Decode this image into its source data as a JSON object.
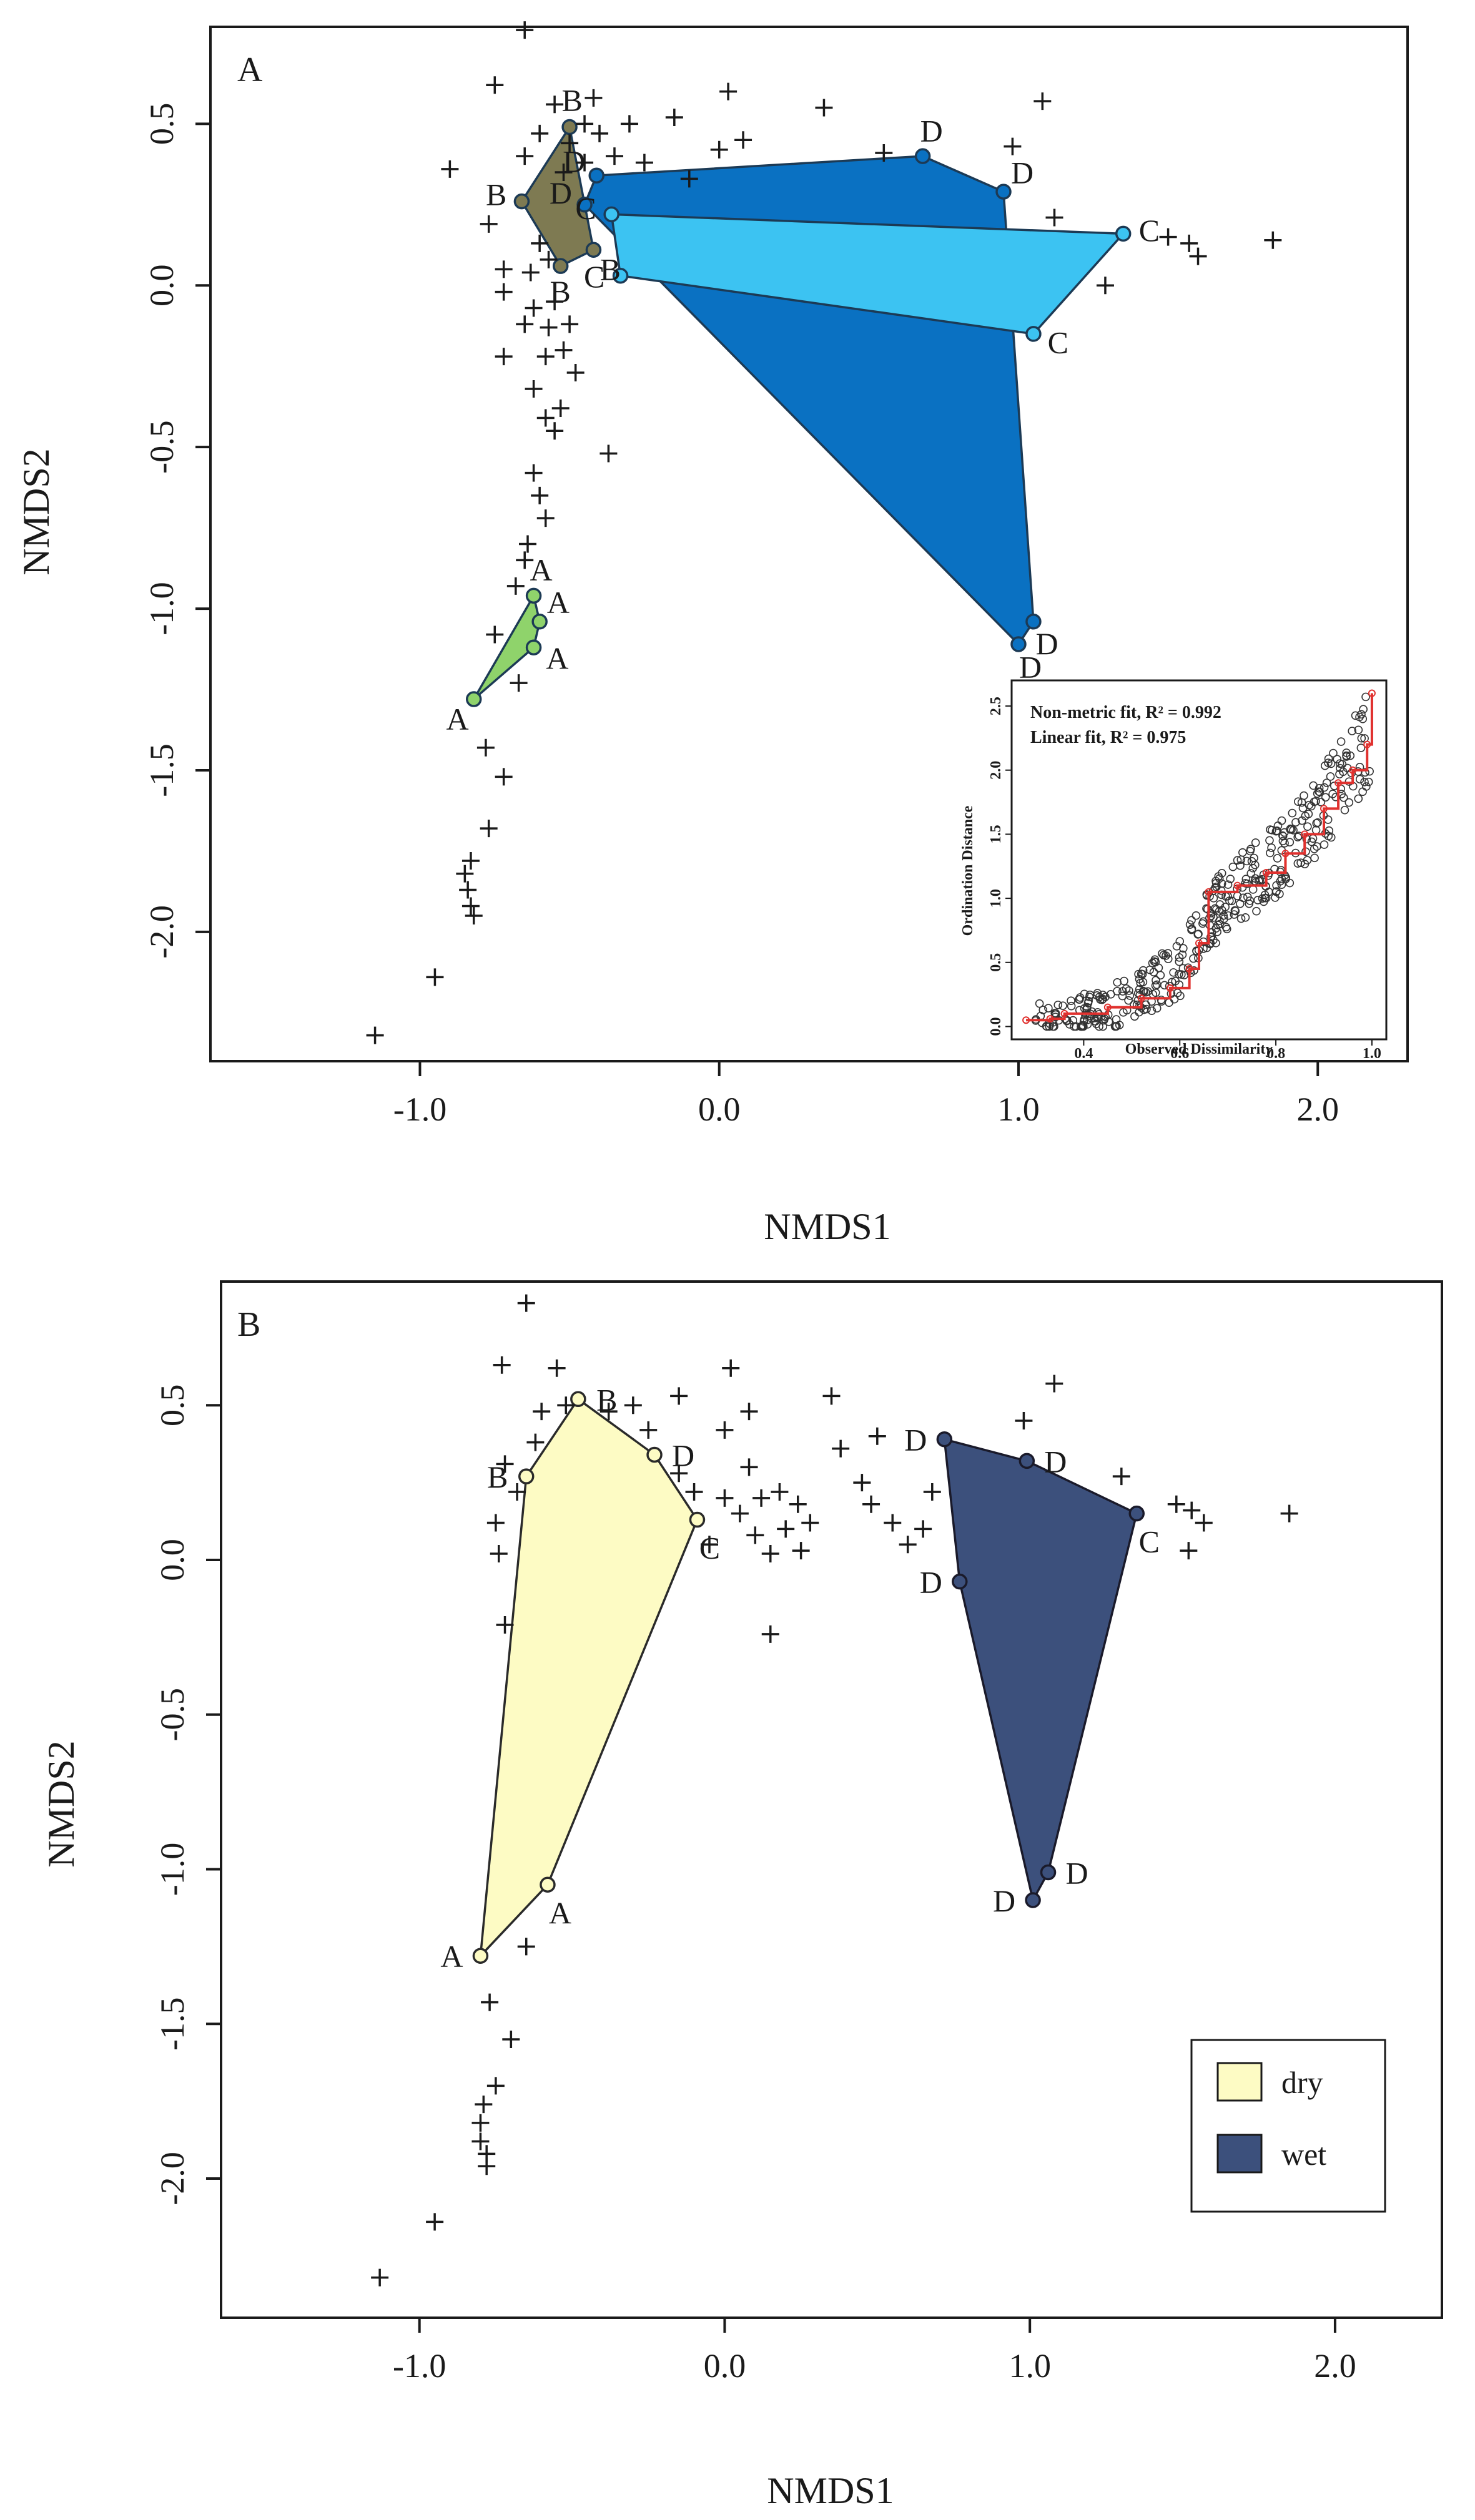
{
  "chart_data": [
    {
      "type": "scatter",
      "panel_label": "A",
      "xlabel": "NMDS1",
      "ylabel": "NMDS2",
      "xlim": [
        -1.7,
        2.3
      ],
      "ylim": [
        -2.4,
        0.8
      ],
      "xticks": [
        -1.0,
        0.0,
        1.0,
        2.0
      ],
      "xtick_labels": [
        "-1.0",
        "0.0",
        "1.0",
        "2.0"
      ],
      "yticks": [
        0.5,
        0.0,
        -0.5,
        -1.0,
        -1.5,
        -2.0
      ],
      "ytick_labels": [
        "0.5",
        "0.0",
        "-0.5",
        "-1.0",
        "-1.5",
        "-2.0"
      ],
      "grid": false,
      "marker": "+",
      "points": [
        [
          -0.65,
          0.79
        ],
        [
          -0.75,
          0.62
        ],
        [
          -0.55,
          0.56
        ],
        [
          -0.42,
          0.58
        ],
        [
          -0.6,
          0.47
        ],
        [
          -0.45,
          0.5
        ],
        [
          -0.5,
          0.44
        ],
        [
          -0.4,
          0.47
        ],
        [
          -0.3,
          0.5
        ],
        [
          -0.15,
          0.52
        ],
        [
          -0.9,
          0.36
        ],
        [
          -0.65,
          0.4
        ],
        [
          -0.52,
          0.35
        ],
        [
          -0.45,
          0.38
        ],
        [
          -0.35,
          0.4
        ],
        [
          -0.25,
          0.38
        ],
        [
          -0.1,
          0.33
        ],
        [
          0.0,
          0.42
        ],
        [
          0.08,
          0.45
        ],
        [
          0.03,
          0.6
        ],
        [
          0.35,
          0.55
        ],
        [
          0.55,
          0.41
        ],
        [
          0.98,
          0.43
        ],
        [
          1.08,
          0.57
        ],
        [
          1.12,
          0.21
        ],
        [
          -0.77,
          0.19
        ],
        [
          -0.6,
          0.13
        ],
        [
          -0.72,
          0.05
        ],
        [
          -0.63,
          0.04
        ],
        [
          -0.57,
          0.08
        ],
        [
          -0.72,
          -0.02
        ],
        [
          -0.62,
          -0.07
        ],
        [
          -0.55,
          -0.05
        ],
        [
          -0.65,
          -0.12
        ],
        [
          -0.57,
          -0.13
        ],
        [
          -0.5,
          -0.12
        ],
        [
          -0.58,
          -0.22
        ],
        [
          -0.52,
          -0.2
        ],
        [
          -0.48,
          -0.27
        ],
        [
          -0.72,
          -0.22
        ],
        [
          -0.62,
          -0.32
        ],
        [
          -0.58,
          -0.41
        ],
        [
          -0.53,
          -0.38
        ],
        [
          -0.55,
          -0.45
        ],
        [
          -0.62,
          -0.58
        ],
        [
          -0.6,
          -0.65
        ],
        [
          -0.58,
          -0.72
        ],
        [
          -0.64,
          -0.8
        ],
        [
          -0.65,
          -0.85
        ],
        [
          -0.68,
          -0.93
        ],
        [
          -0.37,
          -0.52
        ],
        [
          -0.75,
          -1.08
        ],
        [
          -0.67,
          -1.23
        ],
        [
          -0.78,
          -1.43
        ],
        [
          -0.72,
          -1.52
        ],
        [
          -0.77,
          -1.68
        ],
        [
          -0.83,
          -1.78
        ],
        [
          -0.85,
          -1.82
        ],
        [
          -0.84,
          -1.87
        ],
        [
          -0.83,
          -1.92
        ],
        [
          -0.82,
          -1.95
        ],
        [
          -0.95,
          -2.14
        ],
        [
          -1.15,
          -2.32
        ],
        [
          1.29,
          0.0
        ],
        [
          1.5,
          0.15
        ],
        [
          1.57,
          0.13
        ],
        [
          1.6,
          0.09
        ],
        [
          1.85,
          0.14
        ]
      ],
      "groups": [
        {
          "name": "A",
          "color": "#8fd36b",
          "vertex_label": "A",
          "hull": [
            [
              -0.82,
              -1.28
            ],
            [
              -0.62,
              -0.96
            ],
            [
              -0.6,
              -1.04
            ],
            [
              -0.62,
              -1.12
            ]
          ]
        },
        {
          "name": "B",
          "color": "#7e7a52",
          "vertex_label": "B",
          "hull": [
            [
              -0.66,
              0.26
            ],
            [
              -0.5,
              0.49
            ],
            [
              -0.42,
              0.11
            ],
            [
              -0.53,
              0.06
            ]
          ]
        },
        {
          "name": "D",
          "color": "#0a71c2",
          "vertex_label": "D",
          "hull": [
            [
              -0.41,
              0.34
            ],
            [
              0.68,
              0.4
            ],
            [
              0.95,
              0.29
            ],
            [
              1.05,
              -1.04
            ],
            [
              1.0,
              -1.11
            ],
            [
              -0.45,
              0.25
            ]
          ]
        },
        {
          "name": "C",
          "color": "#3cc3f2",
          "vertex_label": "C",
          "hull": [
            [
              -0.36,
              0.22
            ],
            [
              1.35,
              0.16
            ],
            [
              1.05,
              -0.15
            ],
            [
              -0.33,
              0.03
            ]
          ]
        }
      ],
      "inset": {
        "type": "scatter",
        "title": "",
        "annotations": [
          "Non-metric fit, R² = 0.992",
          "Linear fit, R² = 0.975"
        ],
        "xlabel": "Observed Dissimilarity",
        "ylabel": "Ordination Distance",
        "xlim": [
          0.25,
          1.03
        ],
        "ylim": [
          -0.1,
          2.7
        ],
        "xticks": [
          0.4,
          0.6,
          0.8,
          1.0
        ],
        "xtick_labels": [
          "0.4",
          "0.6",
          "0.8",
          "1.0"
        ],
        "yticks": [
          0.0,
          0.5,
          1.0,
          1.5,
          2.0,
          2.5
        ],
        "ytick_labels": [
          "0.0",
          "0.5",
          "1.0",
          "1.5",
          "2.0",
          "2.5"
        ],
        "fit_line_color": "#e0312e",
        "point_color": "#333333",
        "trend_points": [
          [
            0.28,
            0.05
          ],
          [
            0.4,
            0.1
          ],
          [
            0.5,
            0.2
          ],
          [
            0.6,
            0.45
          ],
          [
            0.65,
            0.8
          ],
          [
            0.7,
            1.0
          ],
          [
            0.8,
            1.3
          ],
          [
            0.9,
            1.7
          ],
          [
            0.95,
            2.0
          ],
          [
            1.0,
            2.3
          ]
        ],
        "fit_step": [
          [
            0.28,
            0.05
          ],
          [
            0.33,
            0.06
          ],
          [
            0.36,
            0.1
          ],
          [
            0.45,
            0.15
          ],
          [
            0.52,
            0.22
          ],
          [
            0.58,
            0.3
          ],
          [
            0.62,
            0.45
          ],
          [
            0.64,
            0.65
          ],
          [
            0.66,
            1.05
          ],
          [
            0.72,
            1.1
          ],
          [
            0.78,
            1.2
          ],
          [
            0.82,
            1.35
          ],
          [
            0.86,
            1.5
          ],
          [
            0.9,
            1.7
          ],
          [
            0.93,
            1.9
          ],
          [
            0.96,
            2.0
          ],
          [
            0.99,
            2.2
          ],
          [
            1.0,
            2.6
          ]
        ]
      }
    },
    {
      "type": "scatter",
      "panel_label": "B",
      "xlabel": "NMDS1",
      "ylabel": "NMDS2",
      "xlim": [
        -1.65,
        2.35
      ],
      "ylim": [
        -2.45,
        0.9
      ],
      "xticks": [
        -1.0,
        0.0,
        1.0,
        2.0
      ],
      "xtick_labels": [
        "-1.0",
        "0.0",
        "1.0",
        "2.0"
      ],
      "yticks": [
        0.5,
        0.0,
        -0.5,
        -1.0,
        -1.5,
        -2.0
      ],
      "ytick_labels": [
        "0.5",
        "0.0",
        "-0.5",
        "-1.0",
        "-1.5",
        "-2.0"
      ],
      "grid": false,
      "marker": "+",
      "legend_position": "bottom-right",
      "points": [
        [
          -0.65,
          0.83
        ],
        [
          -0.73,
          0.63
        ],
        [
          -0.55,
          0.62
        ],
        [
          -0.52,
          0.5
        ],
        [
          -0.6,
          0.48
        ],
        [
          -0.38,
          0.48
        ],
        [
          -0.3,
          0.5
        ],
        [
          -0.25,
          0.42
        ],
        [
          -0.15,
          0.53
        ],
        [
          0.02,
          0.62
        ],
        [
          0.08,
          0.48
        ],
        [
          0.35,
          0.53
        ],
        [
          0.0,
          0.42
        ],
        [
          0.08,
          0.3
        ],
        [
          -0.15,
          0.28
        ],
        [
          -0.1,
          0.22
        ],
        [
          0.0,
          0.2
        ],
        [
          0.05,
          0.15
        ],
        [
          0.12,
          0.2
        ],
        [
          0.18,
          0.22
        ],
        [
          0.24,
          0.18
        ],
        [
          0.28,
          0.12
        ],
        [
          0.25,
          0.03
        ],
        [
          -0.05,
          0.05
        ],
        [
          0.1,
          0.08
        ],
        [
          0.15,
          0.02
        ],
        [
          0.2,
          0.1
        ],
        [
          0.5,
          0.4
        ],
        [
          0.38,
          0.36
        ],
        [
          0.45,
          0.25
        ],
        [
          0.48,
          0.18
        ],
        [
          0.55,
          0.12
        ],
        [
          0.6,
          0.05
        ],
        [
          0.65,
          0.1
        ],
        [
          0.68,
          0.22
        ],
        [
          0.98,
          0.45
        ],
        [
          1.08,
          0.57
        ],
        [
          1.3,
          0.27
        ],
        [
          1.48,
          0.18
        ],
        [
          1.53,
          0.16
        ],
        [
          1.57,
          0.12
        ],
        [
          1.52,
          0.03
        ],
        [
          1.85,
          0.15
        ],
        [
          0.15,
          -0.24
        ],
        [
          -0.72,
          0.31
        ],
        [
          -0.68,
          0.22
        ],
        [
          -0.75,
          0.12
        ],
        [
          -0.74,
          0.02
        ],
        [
          -0.72,
          -0.21
        ],
        [
          -0.62,
          0.38
        ],
        [
          -0.65,
          -1.25
        ],
        [
          -0.77,
          -1.43
        ],
        [
          -0.7,
          -1.55
        ],
        [
          -0.75,
          -1.7
        ],
        [
          -0.79,
          -1.76
        ],
        [
          -0.8,
          -1.82
        ],
        [
          -0.8,
          -1.88
        ],
        [
          -0.78,
          -1.92
        ],
        [
          -0.78,
          -1.96
        ],
        [
          -0.95,
          -2.14
        ],
        [
          -1.13,
          -2.32
        ]
      ],
      "groups": [
        {
          "name": "dry",
          "color": "#fdfbc4",
          "stroke": "#2a2a2a",
          "hull": [
            [
              -0.8,
              -1.28
            ],
            [
              -0.65,
              0.27
            ],
            [
              -0.48,
              0.52
            ],
            [
              -0.23,
              0.34
            ],
            [
              -0.09,
              0.13
            ],
            [
              -0.58,
              -1.05
            ]
          ]
        },
        {
          "name": "wet",
          "color": "#3c507c",
          "stroke": "#1a1a2a",
          "hull": [
            [
              0.72,
              0.39
            ],
            [
              0.99,
              0.32
            ],
            [
              1.35,
              0.15
            ],
            [
              1.06,
              -1.01
            ],
            [
              1.01,
              -1.1
            ],
            [
              0.77,
              -0.07
            ]
          ]
        }
      ],
      "vertex_labels": [
        {
          "text": "A",
          "at": [
            -0.8,
            -1.28
          ],
          "side": "left"
        },
        {
          "text": "B",
          "at": [
            -0.65,
            0.27
          ],
          "side": "left"
        },
        {
          "text": "B",
          "at": [
            -0.48,
            0.52
          ],
          "side": "right"
        },
        {
          "text": "D",
          "at": [
            -0.23,
            0.34
          ],
          "side": "right"
        },
        {
          "text": "C",
          "at": [
            -0.09,
            0.13
          ],
          "side": "below"
        },
        {
          "text": "A",
          "at": [
            -0.58,
            -1.05
          ],
          "side": "below"
        },
        {
          "text": "D",
          "at": [
            0.72,
            0.39
          ],
          "side": "left"
        },
        {
          "text": "D",
          "at": [
            0.99,
            0.32
          ],
          "side": "right"
        },
        {
          "text": "C",
          "at": [
            1.35,
            0.15
          ],
          "side": "below"
        },
        {
          "text": "D",
          "at": [
            1.06,
            -1.01
          ],
          "side": "right"
        },
        {
          "text": "D",
          "at": [
            1.01,
            -1.1
          ],
          "side": "left"
        },
        {
          "text": "D",
          "at": [
            0.77,
            -0.07
          ],
          "side": "left"
        }
      ],
      "legend": [
        {
          "label": "dry",
          "color": "#fdfbc4"
        },
        {
          "label": "wet",
          "color": "#3c507c"
        }
      ]
    }
  ]
}
